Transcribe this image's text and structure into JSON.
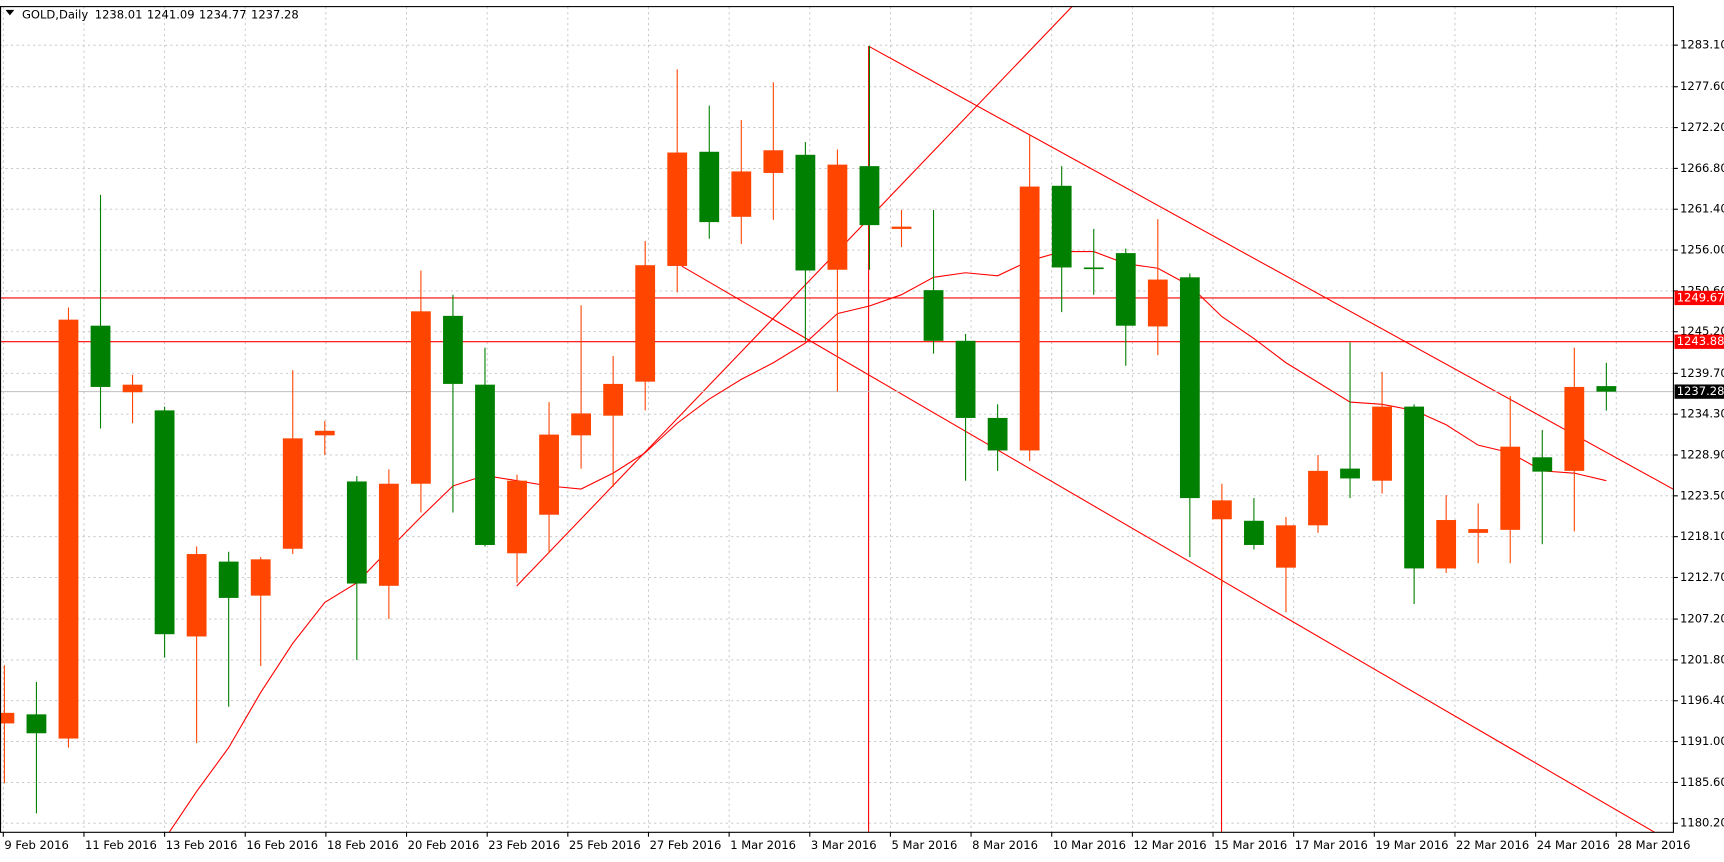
{
  "chart_data": {
    "type": "candlestick",
    "title": "GOLD,Daily",
    "header_values": [
      1238.01,
      1241.09,
      1234.77,
      1237.28
    ],
    "categories": [
      "9 Feb 2016",
      null,
      "11 Feb 2016",
      null,
      null,
      "13 Feb 2016",
      null,
      "16 Feb 2016",
      null,
      null,
      "18 Feb 2016",
      null,
      "20 Feb 2016",
      null,
      null,
      "23 Feb 2016",
      null,
      "25 Feb 2016",
      null,
      null,
      "27 Feb 2016",
      null,
      "1 Mar 2016",
      null,
      null,
      "3 Mar 2016",
      null,
      "5 Mar 2016",
      null,
      null,
      "8 Mar 2016",
      null,
      "10 Mar 2016",
      null,
      null,
      "12 Mar 2016",
      null,
      "15 Mar 2016",
      null,
      null,
      "17 Mar 2016",
      null,
      "19 Mar 2016",
      null,
      null,
      "22 Mar 2016",
      null,
      "24 Mar 2016",
      null,
      null,
      "28 Mar 2016"
    ],
    "open": [
      1193.4,
      1194.6,
      1191.4,
      1246.0,
      1237.2,
      1234.8,
      1204.9,
      1214.8,
      1210.3,
      1216.5,
      1231.5,
      1225.4,
      1211.6,
      1225.1,
      1247.3,
      1238.2,
      1215.9,
      1221.0,
      1231.5,
      1234.1,
      1238.6,
      1253.9,
      1269.0,
      1260.4,
      1266.2,
      1268.6,
      1253.4,
      1267.1,
      1258.8,
      1250.7,
      1244.0,
      1233.8,
      1229.5,
      1264.5,
      1253.7,
      1255.6,
      1245.9,
      1252.4,
      1220.4,
      1220.2,
      1214.0,
      1219.6,
      1227.1,
      1225.5,
      1235.3,
      1213.9,
      1218.6,
      1219.0,
      1228.6,
      1226.8,
      1238.01
    ],
    "high": [
      1201.1,
      1198.9,
      1248.4,
      1263.3,
      1239.5,
      1235.3,
      1216.8,
      1216.1,
      1215.4,
      1240.1,
      1233.4,
      1226.1,
      1227.0,
      1253.3,
      1250.1,
      1243.1,
      1226.3,
      1235.9,
      1248.7,
      1242.0,
      1257.2,
      1279.9,
      1275.1,
      1273.2,
      1278.2,
      1270.3,
      1269.3,
      1283.0,
      1261.3,
      1261.3,
      1244.9,
      1235.6,
      1271.2,
      1267.1,
      1258.8,
      1256.2,
      1260.1,
      1252.9,
      1225.1,
      1223.2,
      1220.7,
      1228.9,
      1243.8,
      1239.9,
      1235.6,
      1223.6,
      1222.5,
      1236.7,
      1232.2,
      1243.1,
      1241.09
    ],
    "low": [
      1185.5,
      1181.5,
      1190.2,
      1232.4,
      1233.1,
      1202.1,
      1190.8,
      1195.6,
      1201.0,
      1215.8,
      1228.9,
      1201.8,
      1207.2,
      1221.3,
      1221.3,
      1216.8,
      1212.0,
      1215.9,
      1227.1,
      1224.7,
      1234.8,
      1250.4,
      1257.5,
      1256.8,
      1260.0,
      1244.0,
      1237.3,
      1253.4,
      1256.4,
      1242.3,
      1225.5,
      1226.8,
      1228.1,
      1247.8,
      1250.1,
      1240.7,
      1242.1,
      1215.4,
      1211.6,
      1216.4,
      1208.1,
      1218.6,
      1223.2,
      1223.8,
      1209.2,
      1213.3,
      1214.6,
      1214.6,
      1217.1,
      1218.8,
      1234.77
    ],
    "close": [
      1194.8,
      1192.1,
      1246.8,
      1237.9,
      1238.2,
      1205.2,
      1215.8,
      1210.0,
      1215.1,
      1231.1,
      1232.1,
      1211.9,
      1225.1,
      1247.9,
      1238.3,
      1217.0,
      1225.5,
      1231.6,
      1234.4,
      1238.3,
      1254.0,
      1268.9,
      1259.7,
      1266.4,
      1269.2,
      1253.3,
      1267.3,
      1259.3,
      1259.1,
      1244.0,
      1233.8,
      1229.5,
      1264.4,
      1253.7,
      1253.6,
      1246.0,
      1252.1,
      1223.2,
      1222.9,
      1217.0,
      1219.6,
      1226.8,
      1225.8,
      1235.3,
      1213.9,
      1220.3,
      1219.1,
      1230.0,
      1226.7,
      1237.9,
      1237.28
    ],
    "bull_color": "#ff4500",
    "bear_color": "#008000",
    "series": [
      {
        "color": "#ff0000",
        "values": [
          null,
          null,
          null,
          null,
          null,
          1178.1,
          1184.4,
          1190.2,
          1197.5,
          1204.0,
          1209.4,
          1212.0,
          1216.4,
          1220.7,
          1224.8,
          1226.2,
          1225.5,
          1224.8,
          1224.4,
          1226.5,
          1229.2,
          1233.1,
          1236.3,
          1238.9,
          1241.1,
          1243.7,
          1247.6,
          1248.6,
          1250.1,
          1252.4,
          1253.0,
          1252.6,
          1254.6,
          1255.8,
          1255.8,
          1254.2,
          1253.6,
          1251.3,
          1247.2,
          1244.3,
          1241.1,
          1238.5,
          1235.9,
          1235.6,
          1234.8,
          1232.9,
          1230.2,
          1229.2,
          1226.8,
          1226.5,
          1225.5
        ]
      }
    ],
    "price_lines": [
      {
        "value": 1249.67,
        "color": "#ff0000",
        "label_background": "#ff0000"
      },
      {
        "value": 1243.88,
        "color": "#ff0000",
        "label_background": "#ff0000"
      },
      {
        "value": 1237.28,
        "color": "#c0c0c0",
        "label_background": "#000000"
      }
    ],
    "ylim": [
      1179.0,
      1288.2
    ],
    "yticks": [
      {
        "value": 1283.1,
        "label": "1283.10"
      },
      {
        "value": 1277.6,
        "label": "1277.60"
      },
      {
        "value": 1272.2,
        "label": "1272.20"
      },
      {
        "value": 1266.8,
        "label": "1266.80"
      },
      {
        "value": 1261.4,
        "label": "1261.40"
      },
      {
        "value": 1256,
        "label": "1256.00"
      },
      {
        "value": 1250.6,
        "label": "1250.60"
      },
      {
        "value": 1245.2,
        "label": "1245.20"
      },
      {
        "value": 1239.7,
        "label": "1239.70"
      },
      {
        "value": 1234.3,
        "label": "1234.30"
      },
      {
        "value": 1228.9,
        "label": "1228.90"
      },
      {
        "value": 1223.5,
        "label": "1223.50"
      },
      {
        "value": 1218.1,
        "label": "1218.10"
      },
      {
        "value": 1212.7,
        "label": "1212.70"
      },
      {
        "value": 1207.2,
        "label": "1207.20"
      },
      {
        "value": 1201.8,
        "label": "1201.80"
      },
      {
        "value": 1196.4,
        "label": "1196.40"
      },
      {
        "value": 1191,
        "label": "1191.00"
      },
      {
        "value": 1185.6,
        "label": "1185.60"
      },
      {
        "value": 1180.2,
        "label": "1180.20"
      }
    ],
    "grid": true
  }
}
